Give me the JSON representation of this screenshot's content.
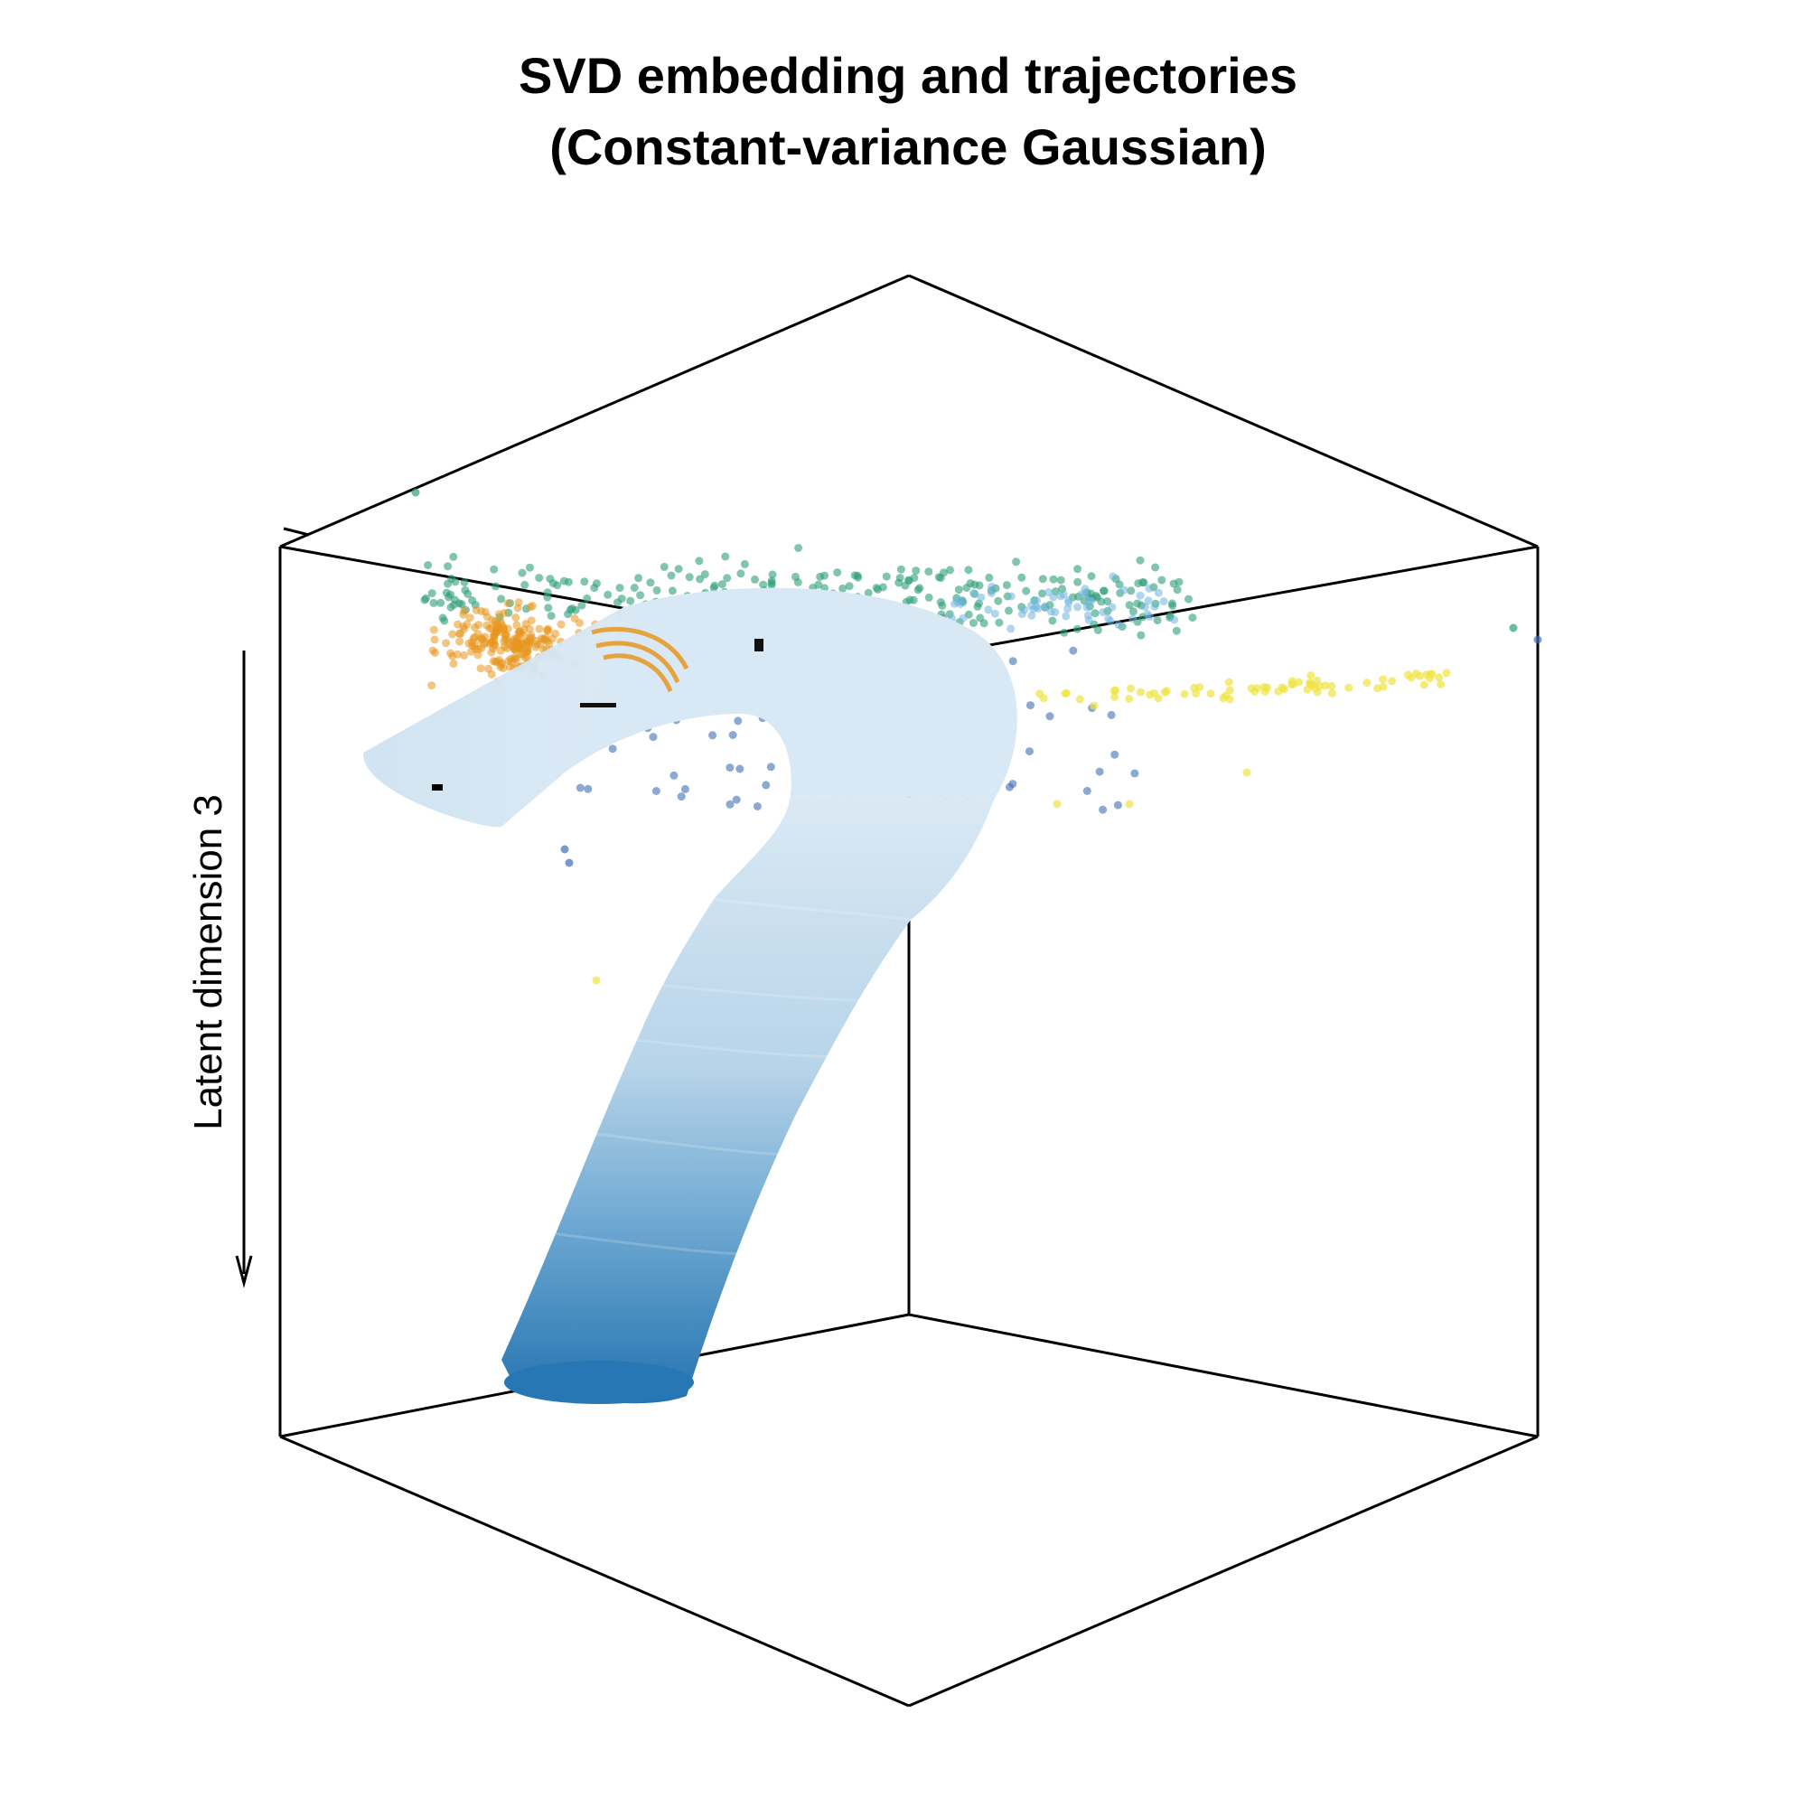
{
  "chart_data": {
    "type": "scatter",
    "projection": "3d",
    "title": "SVD embedding and trajectories",
    "subtitle": "(Constant-variance Gaussian)",
    "xlabel": "",
    "ylabel": "",
    "zlabel": "Latent dimension 3",
    "grid": false,
    "legend": "none",
    "point_colors": {
      "green": "#2e9e7a",
      "orange": "#e8961e",
      "blue": "#3f6fb5",
      "light_blue": "#6fb4e0",
      "yellow": "#f0e442"
    },
    "trajectory": {
      "type": "tube",
      "color_start": "#d6e6f2",
      "color_end": "#2473b0"
    }
  }
}
